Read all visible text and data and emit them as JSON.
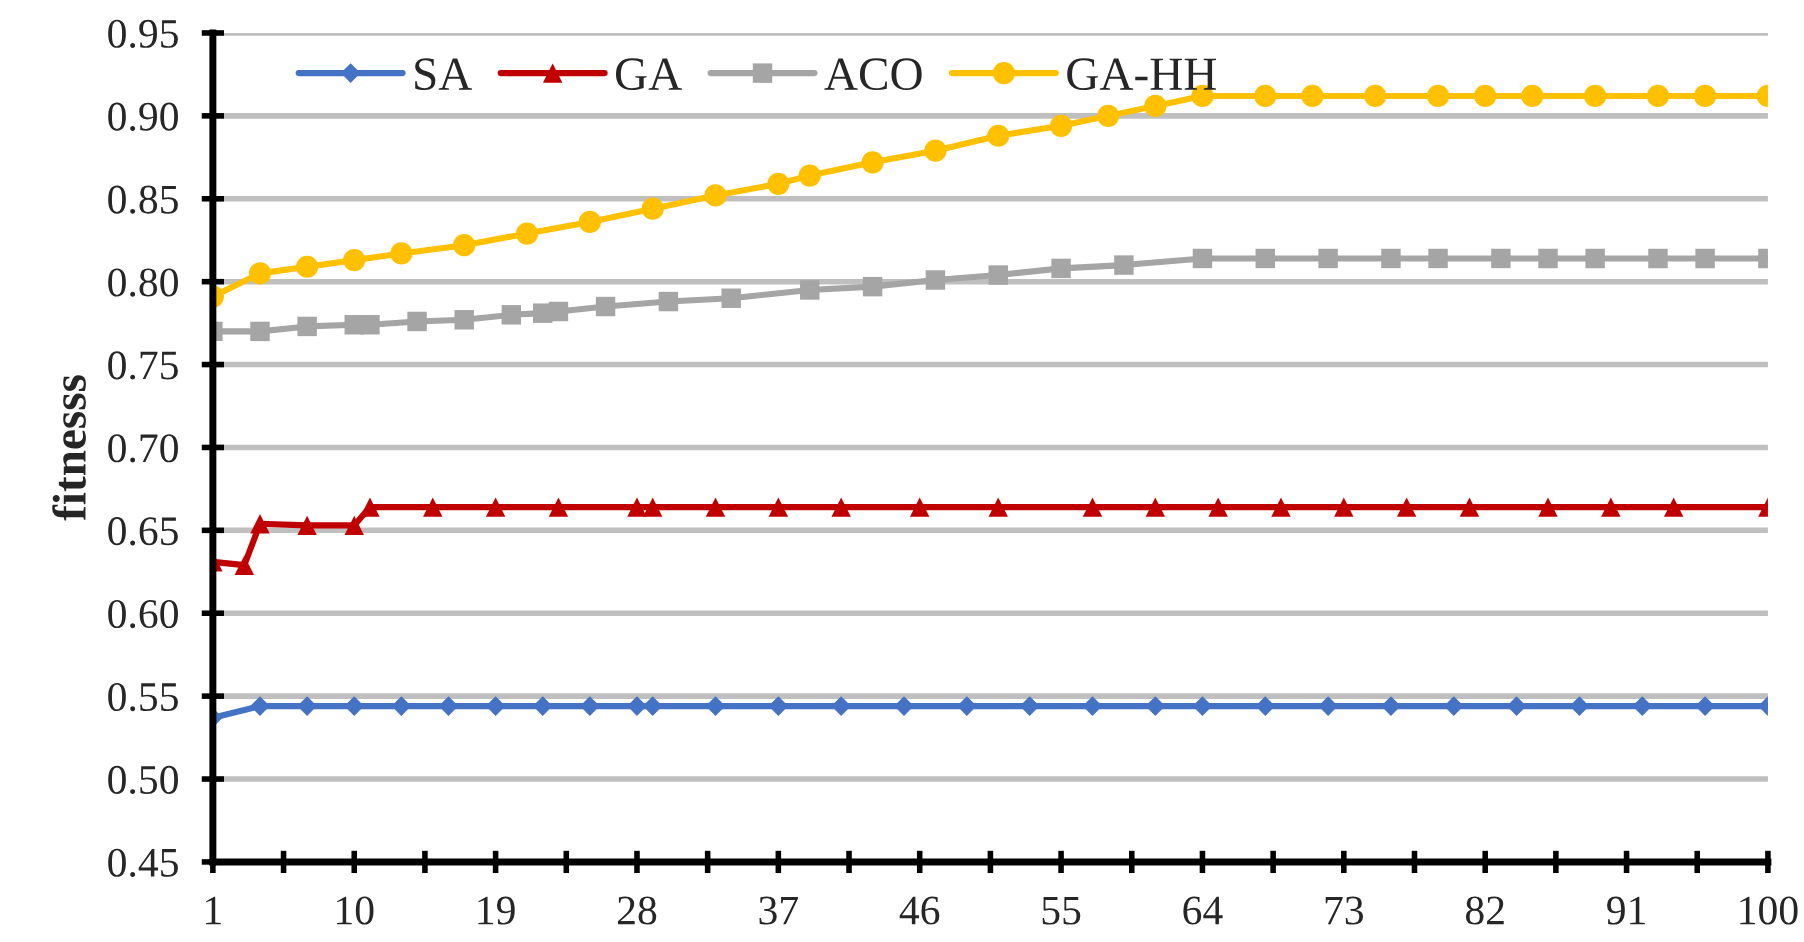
{
  "chart_data": {
    "type": "line",
    "ylabel": "fitnesss",
    "xlim": [
      1,
      100
    ],
    "xticks": [
      1,
      {
        "value": 5.5,
        "label": null
      },
      10,
      {
        "value": 14.5,
        "label": null
      },
      19,
      {
        "value": 23.5,
        "label": null
      },
      28,
      {
        "value": 32.5,
        "label": null
      },
      37,
      {
        "value": 41.5,
        "label": null
      },
      46,
      {
        "value": 50.5,
        "label": null
      },
      55,
      {
        "value": 59.5,
        "label": null
      },
      64,
      {
        "value": 68.5,
        "label": null
      },
      73,
      {
        "value": 77.5,
        "label": null
      },
      82,
      {
        "value": 86.5,
        "label": null
      },
      91,
      {
        "value": 95.5,
        "label": null
      },
      100
    ],
    "ylim": [
      0.45,
      0.95
    ],
    "yticks": [
      {
        "value": 0.45,
        "label": "0.45"
      },
      {
        "value": 0.5,
        "label": "0.50"
      },
      {
        "value": 0.55,
        "label": "0.55"
      },
      {
        "value": 0.6,
        "label": "0.60"
      },
      {
        "value": 0.65,
        "label": "0.65"
      },
      {
        "value": 0.7,
        "label": "0.70"
      },
      {
        "value": 0.75,
        "label": "0.75"
      },
      {
        "value": 0.8,
        "label": "0.80"
      },
      {
        "value": 0.85,
        "label": "0.85"
      },
      {
        "value": 0.9,
        "label": "0.90"
      },
      {
        "value": 0.95,
        "label": "0.95"
      }
    ],
    "grid": "y",
    "legend": "top left",
    "line_style": "solid",
    "series": [
      {
        "name": "SA",
        "color": "#4472c4",
        "marker": "diamond",
        "x": [
          1,
          4,
          7,
          10,
          13,
          16,
          19,
          22,
          25,
          28,
          29,
          33,
          37,
          41,
          45,
          49,
          53,
          57,
          61,
          64,
          68,
          72,
          76,
          80,
          84,
          88,
          92,
          96,
          100
        ],
        "values": [
          0.537,
          0.544,
          0.544,
          0.544,
          0.544,
          0.544,
          0.544,
          0.544,
          0.544,
          0.544,
          0.544,
          0.544,
          0.544,
          0.544,
          0.544,
          0.544,
          0.544,
          0.544,
          0.544,
          0.544,
          0.544,
          0.544,
          0.544,
          0.544,
          0.544,
          0.544,
          0.544,
          0.544,
          0.544
        ]
      },
      {
        "name": "GA",
        "color": "#c00000",
        "marker": "triangle",
        "x": [
          1,
          3,
          4,
          7,
          10,
          11,
          15,
          19,
          23,
          28,
          29,
          33,
          37,
          41,
          46,
          51,
          57,
          61,
          65,
          69,
          73,
          77,
          81,
          86,
          90,
          94,
          100
        ],
        "values": [
          0.631,
          0.629,
          0.654,
          0.653,
          0.653,
          0.664,
          0.664,
          0.664,
          0.664,
          0.664,
          0.664,
          0.664,
          0.664,
          0.664,
          0.664,
          0.664,
          0.664,
          0.664,
          0.664,
          0.664,
          0.664,
          0.664,
          0.664,
          0.664,
          0.664,
          0.664,
          0.664
        ]
      },
      {
        "name": "ACO",
        "color": "#a5a5a5",
        "marker": "square",
        "x": [
          1,
          4,
          7,
          10,
          11,
          14,
          17,
          20,
          22,
          23,
          26,
          30,
          34,
          39,
          43,
          47,
          51,
          55,
          59,
          64,
          68,
          72,
          76,
          79,
          83,
          86,
          89,
          93,
          96,
          100
        ],
        "values": [
          0.77,
          0.77,
          0.773,
          0.774,
          0.774,
          0.776,
          0.777,
          0.78,
          0.781,
          0.782,
          0.785,
          0.788,
          0.79,
          0.795,
          0.797,
          0.801,
          0.804,
          0.808,
          0.81,
          0.814,
          0.814,
          0.814,
          0.814,
          0.814,
          0.814,
          0.814,
          0.814,
          0.814,
          0.814,
          0.814
        ]
      },
      {
        "name": "GA-HH",
        "color": "#ffc000",
        "marker": "circle",
        "x": [
          1,
          4,
          7,
          10,
          13,
          17,
          21,
          25,
          29,
          33,
          37,
          39,
          43,
          47,
          51,
          55,
          58,
          61,
          64,
          68,
          71,
          75,
          79,
          82,
          85,
          89,
          93,
          96,
          100
        ],
        "values": [
          0.791,
          0.805,
          0.809,
          0.813,
          0.817,
          0.822,
          0.829,
          0.836,
          0.844,
          0.852,
          0.859,
          0.864,
          0.872,
          0.879,
          0.888,
          0.894,
          0.9,
          0.906,
          0.912,
          0.912,
          0.912,
          0.912,
          0.912,
          0.912,
          0.912,
          0.912,
          0.912,
          0.912,
          0.912
        ]
      }
    ]
  }
}
